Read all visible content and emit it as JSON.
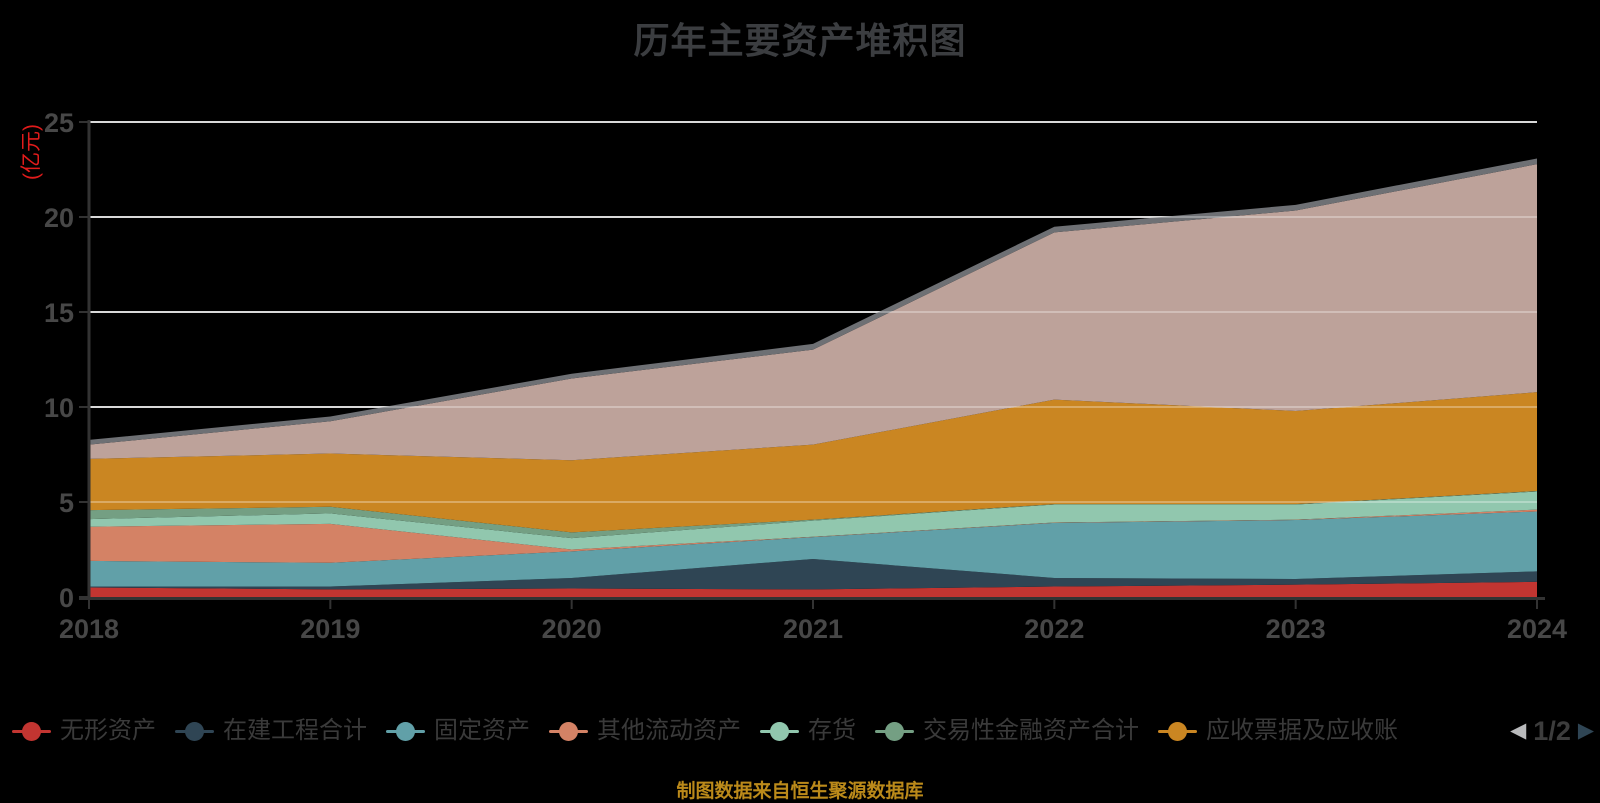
{
  "header": {
    "title": "历年主要资产堆积图"
  },
  "chart_data": {
    "type": "area",
    "stacked": true,
    "title": "历年主要资产堆积图",
    "unit_label": "(亿元)",
    "categories": [
      "2018",
      "2019",
      "2020",
      "2021",
      "2022",
      "2023",
      "2024"
    ],
    "ylim": [
      0,
      25
    ],
    "yticks": [
      0,
      5,
      10,
      15,
      20,
      25
    ],
    "grid": true,
    "legend_position": "bottom",
    "series": [
      {
        "name": "无形资产",
        "color": "#c23531",
        "in_legend": true,
        "values": [
          0.5,
          0.4,
          0.45,
          0.4,
          0.55,
          0.65,
          0.8
        ]
      },
      {
        "name": "在建工程合计",
        "color": "#2f4554",
        "in_legend": true,
        "values": [
          0.05,
          0.15,
          0.55,
          1.6,
          0.45,
          0.3,
          0.55
        ]
      },
      {
        "name": "固定资产",
        "color": "#61a0a8",
        "in_legend": true,
        "values": [
          1.35,
          1.25,
          1.4,
          1.15,
          2.9,
          3.1,
          3.15
        ]
      },
      {
        "name": "其他流动资产",
        "color": "#d48265",
        "in_legend": true,
        "values": [
          1.8,
          2.05,
          0.1,
          0.02,
          0.02,
          0.02,
          0.1
        ]
      },
      {
        "name": "存货",
        "color": "#91c7ae",
        "in_legend": true,
        "values": [
          0.4,
          0.55,
          0.6,
          0.85,
          0.95,
          0.8,
          0.95
        ]
      },
      {
        "name": "交易性金融资产合计",
        "color": "#749f83",
        "in_legend": true,
        "values": [
          0.47,
          0.35,
          0.3,
          0.05,
          0.02,
          0.02,
          0.03
        ]
      },
      {
        "name": "应收票据及应收账",
        "color": "#ca8622",
        "in_legend": true,
        "values": [
          2.7,
          2.8,
          3.8,
          3.95,
          5.5,
          4.9,
          5.2
        ]
      },
      {
        "name": "",
        "color": "#bda29a",
        "in_legend": false,
        "values": [
          0.75,
          1.7,
          4.3,
          5.0,
          8.8,
          10.55,
          12.0
        ]
      },
      {
        "name": "",
        "color": "#6e7074",
        "in_legend": false,
        "values": [
          0.25,
          0.25,
          0.25,
          0.3,
          0.3,
          0.3,
          0.3
        ]
      }
    ]
  },
  "legend": {
    "page": "1/2",
    "prev_icon": "◀",
    "next_icon": "▶"
  },
  "footer": {
    "source_note": "制图数据来自恒生聚源数据库"
  },
  "colors": {
    "background": "#000000",
    "title_text": "#3b3d40",
    "unit_label_text": "#e11b1b",
    "axis_line": "#333333",
    "tick_label_text": "#474747",
    "gridline": "#c9c9c9",
    "legend_text": "#3a3a3a",
    "pagination_prev": "#b9babc",
    "pagination_next": "#2f4554",
    "source_note_text": "#bb8a1a"
  }
}
